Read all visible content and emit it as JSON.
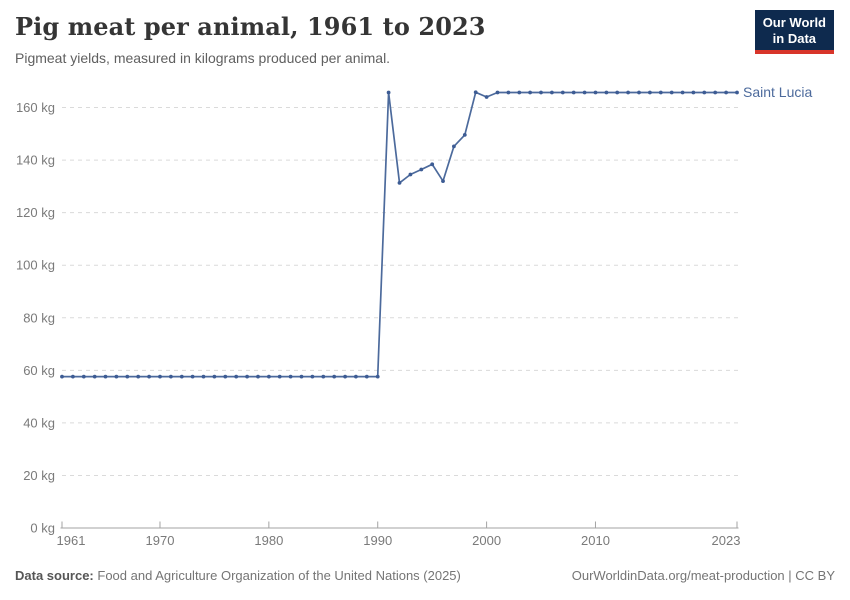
{
  "chart_data": {
    "type": "line",
    "title": "Pig meat per animal, 1961 to 2023",
    "subtitle": "Pigmeat yields, measured in kilograms produced per animal.",
    "unit": "kg",
    "x": [
      1961,
      1962,
      1963,
      1964,
      1965,
      1966,
      1967,
      1968,
      1969,
      1970,
      1971,
      1972,
      1973,
      1974,
      1975,
      1976,
      1977,
      1978,
      1979,
      1980,
      1981,
      1982,
      1983,
      1984,
      1985,
      1986,
      1987,
      1988,
      1989,
      1990,
      1991,
      1992,
      1993,
      1994,
      1995,
      1996,
      1997,
      1998,
      1999,
      2000,
      2001,
      2002,
      2003,
      2004,
      2005,
      2006,
      2007,
      2008,
      2009,
      2010,
      2011,
      2012,
      2013,
      2014,
      2015,
      2016,
      2017,
      2018,
      2019,
      2020,
      2021,
      2022,
      2023
    ],
    "series": [
      {
        "name": "Saint Lucia",
        "values": [
          57.6,
          57.6,
          57.6,
          57.6,
          57.6,
          57.6,
          57.6,
          57.6,
          57.6,
          57.6,
          57.6,
          57.6,
          57.6,
          57.6,
          57.6,
          57.6,
          57.6,
          57.6,
          57.6,
          57.6,
          57.6,
          57.6,
          57.6,
          57.6,
          57.6,
          57.6,
          57.6,
          57.6,
          57.6,
          57.6,
          165.7,
          131.3,
          134.5,
          136.4,
          138.4,
          132,
          145.2,
          149.6,
          165.8,
          164,
          165.7,
          165.7,
          165.7,
          165.7,
          165.7,
          165.7,
          165.7,
          165.7,
          165.7,
          165.7,
          165.7,
          165.7,
          165.7,
          165.7,
          165.7,
          165.7,
          165.7,
          165.7,
          165.7,
          165.7,
          165.7,
          165.7,
          165.7
        ]
      }
    ],
    "xticks": [
      1961,
      1970,
      1980,
      1990,
      2000,
      2010,
      2023
    ],
    "yticks": [
      0,
      20,
      40,
      60,
      80,
      100,
      120,
      140,
      160
    ],
    "ytick_suffix": " kg",
    "ylim": [
      0,
      167
    ],
    "xlim": [
      1961,
      2023
    ],
    "grid": "dashed-horizontal",
    "legend_position": "end-of-line",
    "colors": {
      "line": "#4C6A9C",
      "marker": "#3D5C94",
      "series_label": "#4C6A9C",
      "grid": "#DADADA",
      "axis": "#A3A3A3",
      "tick_text": "#7A7A7A"
    }
  },
  "logo": {
    "line1": "Our World",
    "line2": "in Data",
    "bg_color": "#0E2A4E",
    "accent_color": "#D8352A"
  },
  "footer": {
    "source_label": "Data source:",
    "source_text": "Food and Agriculture Organization of the United Nations (2025)",
    "right_text": "OurWorldinData.org/meat-production | CC BY"
  }
}
